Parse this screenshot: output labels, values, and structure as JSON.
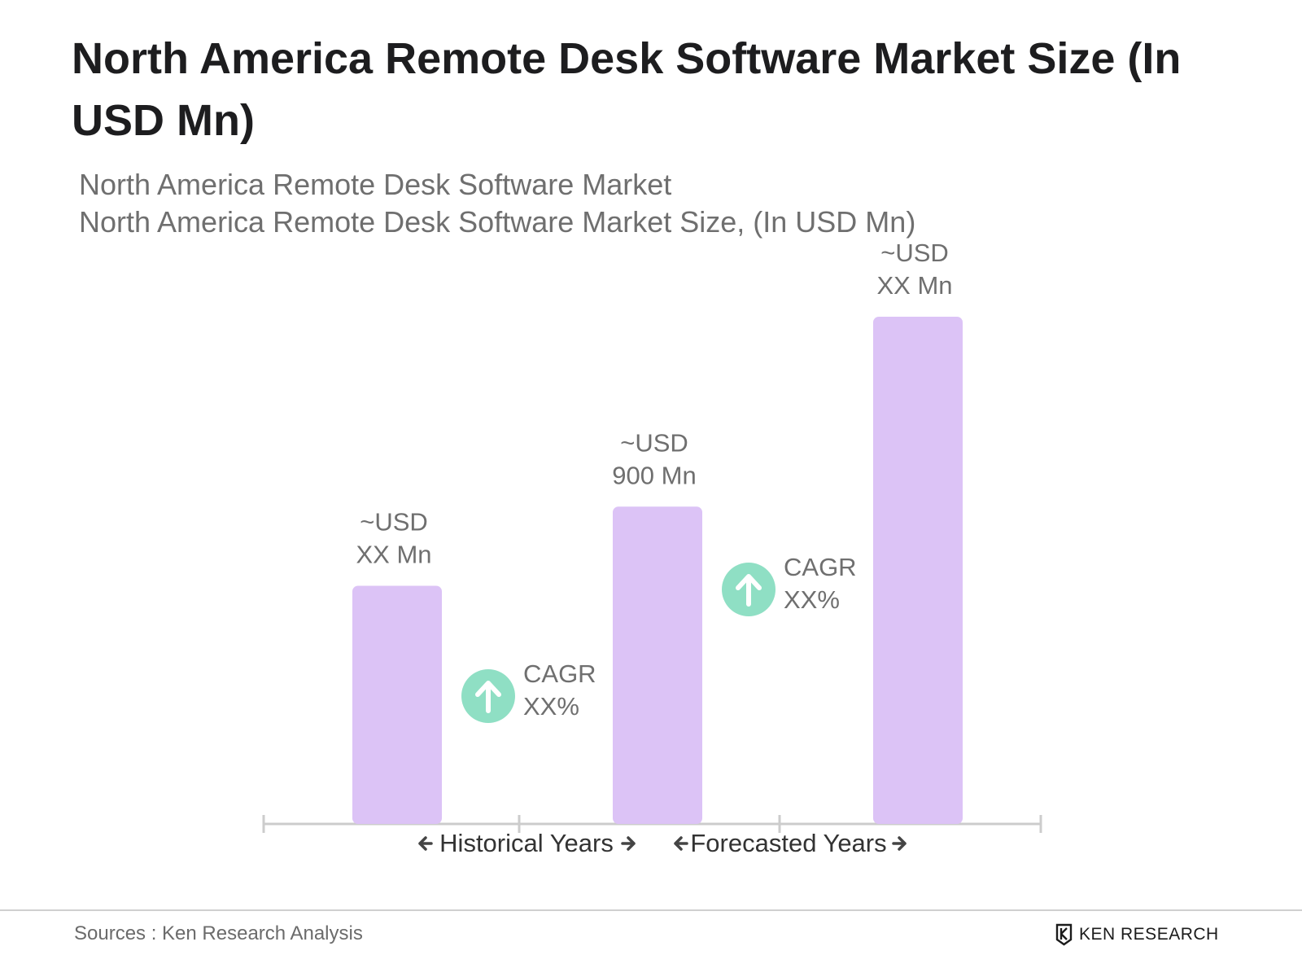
{
  "title": "North America Remote Desk Software Market Size (In USD Mn)",
  "subtitle_line1": "North America Remote Desk Software Market",
  "subtitle_line2": "North America Remote Desk Software Market Size, (In USD Mn)",
  "colors": {
    "bar": "#dcc3f6",
    "cagr_circle": "#8fdfc4",
    "axis": "#cccccc",
    "label": "#6f6f6f"
  },
  "chart_data": {
    "type": "bar",
    "categories": [
      "",
      "",
      ""
    ],
    "values": [
      300,
      400,
      640
    ],
    "data_labels": [
      [
        "~USD",
        "XX Mn"
      ],
      [
        "~USD",
        "900 Mn"
      ],
      [
        "~USD",
        "XX Mn"
      ]
    ],
    "ylim": [
      0,
      640
    ],
    "grid": false,
    "axis_sections": [
      "Historical Years",
      "Forecasted Years"
    ],
    "annotations": [
      {
        "icon": "arrow-up-icon",
        "lines": [
          "CAGR",
          "XX%"
        ],
        "between": [
          0,
          1
        ]
      },
      {
        "icon": "arrow-up-icon",
        "lines": [
          "CAGR",
          "XX%"
        ],
        "between": [
          1,
          2
        ]
      }
    ]
  },
  "footer": {
    "source": "Sources : Ken Research Analysis",
    "logo_text": "KEN RESEARCH"
  }
}
